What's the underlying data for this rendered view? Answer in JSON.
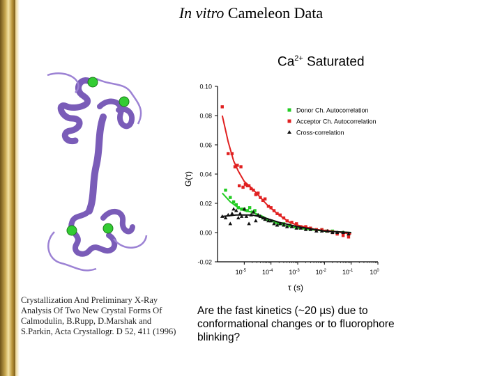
{
  "slide": {
    "title_italic": "In vitro",
    "title_rest": " Cameleon Data",
    "subtitle_base": "Ca",
    "subtitle_sup": "2+",
    "subtitle_rest": " Saturated",
    "citation": "Crystallization And Preliminary X-Ray Analysis Of Two New Crystal Forms Of Calmodulin, B.Rupp, D.Marshak and S.Parkin, Acta Crystallogr. D 52, 411 (1996)",
    "question": "Are the fast kinetics (~20 µs) due to conformational changes or to fluorophore blinking?",
    "accent_color": "#c9a850"
  },
  "chart_data": {
    "type": "scatter",
    "ylabel": "G(τ)",
    "xlabel": "τ (s)",
    "xscale": "log",
    "xlim": [
      1e-06,
      1
    ],
    "ylim": [
      -0.02,
      0.1
    ],
    "y_ticks": [
      "0.10",
      "0.08",
      "0.06",
      "0.04",
      "0.02",
      "0.00",
      "-0.02"
    ],
    "x_ticks": [
      {
        "base": "10",
        "exp": "-5"
      },
      {
        "base": "10",
        "exp": "-4"
      },
      {
        "base": "10",
        "exp": "-3"
      },
      {
        "base": "10",
        "exp": "-2"
      },
      {
        "base": "10",
        "exp": "-1"
      },
      {
        "base": "10",
        "exp": "0"
      }
    ],
    "legend_position": "top-right",
    "series": [
      {
        "name": "Donor Ch. Autocorrelation",
        "color": "#22cc22",
        "marker": "square",
        "x": [
          2e-06,
          3e-06,
          4e-06,
          5e-06,
          6e-06,
          8e-06,
          1e-05,
          1.3e-05,
          1.6e-05,
          2e-05,
          2.5e-05,
          3e-05,
          4e-05,
          5e-05,
          7e-05,
          0.0001,
          0.00015,
          0.0002,
          0.0003,
          0.0005,
          0.0008,
          0.0012,
          0.002,
          0.003,
          0.005,
          0.008,
          0.012,
          0.02,
          0.03,
          0.05,
          0.08
        ],
        "y": [
          0.029,
          0.024,
          0.021,
          0.019,
          0.017,
          0.016,
          0.016,
          0.015,
          0.017,
          0.014,
          0.015,
          0.012,
          0.011,
          0.01,
          0.009,
          0.008,
          0.007,
          0.006,
          0.006,
          0.005,
          0.004,
          0.004,
          0.003,
          0.003,
          0.002,
          0.002,
          0.001,
          0.001,
          0.0,
          0.0,
          -0.001
        ],
        "fit": [
          [
            1.5e-06,
            0.027
          ],
          [
            3e-06,
            0.021
          ],
          [
            6e-06,
            0.017
          ],
          [
            1e-05,
            0.015
          ],
          [
            2e-05,
            0.014
          ],
          [
            5e-05,
            0.011
          ],
          [
            0.0001,
            0.008
          ],
          [
            0.0003,
            0.005
          ],
          [
            0.001,
            0.003
          ],
          [
            0.01,
            0.001
          ],
          [
            0.1,
            0.0
          ]
        ]
      },
      {
        "name": "Acceptor Ch. Autocorrelation",
        "color": "#e02020",
        "marker": "square",
        "x": [
          1.5e-06,
          2.5e-06,
          3.5e-06,
          4.5e-06,
          5.5e-06,
          6.5e-06,
          7.5e-06,
          9e-06,
          1.1e-05,
          1.3e-05,
          1.5e-05,
          1.8e-05,
          2.2e-05,
          2.7e-05,
          3.3e-05,
          4e-05,
          5e-05,
          6e-05,
          8e-05,
          0.0001,
          0.00013,
          0.00017,
          0.00022,
          0.0003,
          0.0004,
          0.0006,
          0.0009,
          0.0013,
          0.002,
          0.003,
          0.005,
          0.008,
          0.013,
          0.02,
          0.03,
          0.05,
          0.08
        ],
        "y": [
          0.086,
          0.054,
          0.054,
          0.045,
          0.046,
          0.032,
          0.045,
          0.031,
          0.033,
          0.032,
          0.032,
          0.03,
          0.029,
          0.026,
          0.027,
          0.024,
          0.022,
          0.023,
          0.018,
          0.017,
          0.015,
          0.013,
          0.012,
          0.01,
          0.008,
          0.007,
          0.006,
          0.004,
          0.004,
          0.003,
          0.002,
          0.002,
          0.001,
          0.0,
          -0.001,
          -0.002,
          -0.003
        ],
        "fit": [
          [
            1.5e-06,
            0.08
          ],
          [
            2.5e-06,
            0.062
          ],
          [
            4e-06,
            0.049
          ],
          [
            6e-06,
            0.042
          ],
          [
            1e-05,
            0.035
          ],
          [
            2e-05,
            0.03
          ],
          [
            4e-05,
            0.024
          ],
          [
            8e-05,
            0.018
          ],
          [
            0.0002,
            0.012
          ],
          [
            0.0005,
            0.007
          ],
          [
            0.001,
            0.005
          ],
          [
            0.005,
            0.002
          ],
          [
            0.02,
            0.001
          ],
          [
            0.1,
            -0.001
          ]
        ]
      },
      {
        "name": "Cross-correlation",
        "color": "#111111",
        "marker": "triangle",
        "x": [
          1.5e-06,
          2e-06,
          2.5e-06,
          3e-06,
          3.5e-06,
          4e-06,
          5e-06,
          6e-06,
          7e-06,
          8e-06,
          1e-05,
          1.2e-05,
          1.5e-05,
          1.8e-05,
          2.2e-05,
          2.7e-05,
          3.3e-05,
          4e-05,
          5e-05,
          6e-05,
          8e-05,
          0.0001,
          0.00013,
          0.00017,
          0.00022,
          0.0003,
          0.0004,
          0.0006,
          0.0009,
          0.0013,
          0.002,
          0.003,
          0.005,
          0.008,
          0.013,
          0.02,
          0.03,
          0.05,
          0.08
        ],
        "y": [
          0.011,
          0.01,
          0.012,
          0.006,
          0.013,
          0.016,
          0.015,
          0.01,
          0.013,
          0.011,
          0.016,
          0.011,
          0.006,
          0.012,
          0.014,
          0.008,
          0.012,
          0.011,
          0.01,
          0.009,
          0.008,
          0.008,
          0.006,
          0.005,
          0.006,
          0.005,
          0.004,
          0.004,
          0.003,
          0.003,
          0.002,
          0.002,
          0.001,
          0.001,
          0.001,
          0.0,
          0.0,
          0.0,
          -0.001
        ],
        "fit": [
          [
            1.5e-06,
            0.011
          ],
          [
            5e-06,
            0.012
          ],
          [
            2e-05,
            0.012
          ],
          [
            6e-05,
            0.01
          ],
          [
            0.0002,
            0.007
          ],
          [
            0.001,
            0.004
          ],
          [
            0.01,
            0.001
          ],
          [
            0.1,
            0.0
          ]
        ]
      }
    ]
  }
}
